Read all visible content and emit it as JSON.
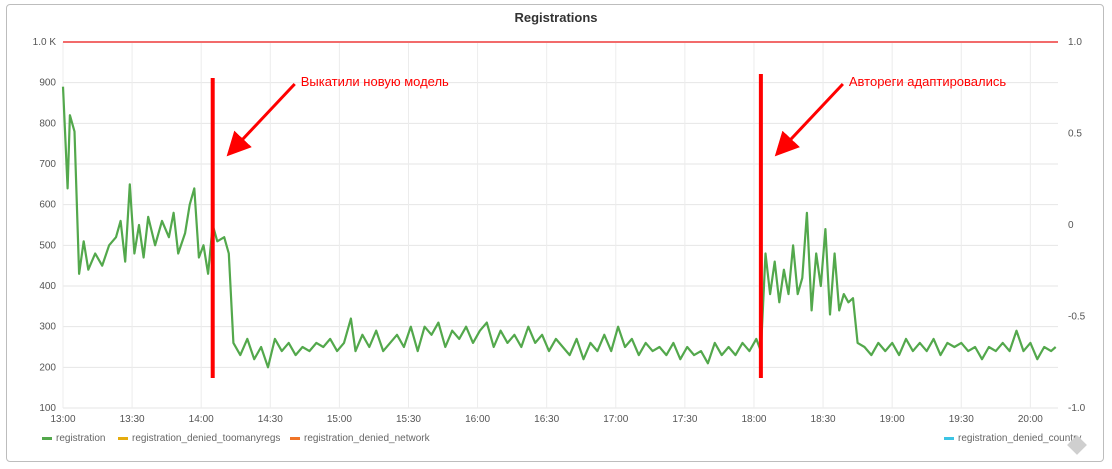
{
  "chart_data": {
    "type": "line",
    "title": "Registrations",
    "x": [
      "13:00",
      "13:30",
      "14:00",
      "14:30",
      "15:00",
      "15:30",
      "16:00",
      "16:30",
      "17:00",
      "17:30",
      "18:00",
      "18:30",
      "19:00",
      "19:30",
      "20:00"
    ],
    "y_left_ticks": [
      "100",
      "200",
      "300",
      "400",
      "500",
      "600",
      "700",
      "800",
      "900",
      "1.0 K"
    ],
    "y_right_ticks": [
      "1.0",
      "0.5",
      "0",
      "-0.5",
      "-1.0"
    ],
    "ylim_left": [
      100,
      1000
    ],
    "ylim_right": [
      -1.0,
      1.0
    ],
    "grid": true,
    "legend_position": "bottom",
    "series": [
      {
        "name": "registration",
        "color": "#53a84c",
        "points": [
          [
            "13:00",
            890
          ],
          [
            "13:02",
            640
          ],
          [
            "13:03",
            820
          ],
          [
            "13:05",
            780
          ],
          [
            "13:07",
            430
          ],
          [
            "13:09",
            510
          ],
          [
            "13:11",
            440
          ],
          [
            "13:14",
            480
          ],
          [
            "13:17",
            450
          ],
          [
            "13:20",
            500
          ],
          [
            "13:23",
            520
          ],
          [
            "13:25",
            560
          ],
          [
            "13:27",
            460
          ],
          [
            "13:29",
            650
          ],
          [
            "13:31",
            480
          ],
          [
            "13:33",
            550
          ],
          [
            "13:35",
            470
          ],
          [
            "13:37",
            570
          ],
          [
            "13:40",
            500
          ],
          [
            "13:43",
            560
          ],
          [
            "13:46",
            520
          ],
          [
            "13:48",
            580
          ],
          [
            "13:50",
            480
          ],
          [
            "13:53",
            530
          ],
          [
            "13:55",
            600
          ],
          [
            "13:57",
            640
          ],
          [
            "13:59",
            470
          ],
          [
            "14:01",
            500
          ],
          [
            "14:03",
            430
          ],
          [
            "14:05",
            550
          ],
          [
            "14:07",
            510
          ],
          [
            "14:10",
            520
          ],
          [
            "14:12",
            480
          ],
          [
            "14:14",
            260
          ],
          [
            "14:17",
            230
          ],
          [
            "14:20",
            270
          ],
          [
            "14:23",
            220
          ],
          [
            "14:26",
            250
          ],
          [
            "14:29",
            200
          ],
          [
            "14:32",
            270
          ],
          [
            "14:35",
            240
          ],
          [
            "14:38",
            260
          ],
          [
            "14:41",
            230
          ],
          [
            "14:44",
            250
          ],
          [
            "14:47",
            240
          ],
          [
            "14:50",
            260
          ],
          [
            "14:53",
            250
          ],
          [
            "14:56",
            270
          ],
          [
            "14:59",
            240
          ],
          [
            "15:02",
            260
          ],
          [
            "15:05",
            320
          ],
          [
            "15:07",
            240
          ],
          [
            "15:10",
            280
          ],
          [
            "15:13",
            250
          ],
          [
            "15:16",
            290
          ],
          [
            "15:19",
            240
          ],
          [
            "15:22",
            260
          ],
          [
            "15:25",
            280
          ],
          [
            "15:28",
            250
          ],
          [
            "15:31",
            300
          ],
          [
            "15:34",
            240
          ],
          [
            "15:37",
            300
          ],
          [
            "15:40",
            280
          ],
          [
            "15:43",
            310
          ],
          [
            "15:46",
            250
          ],
          [
            "15:49",
            290
          ],
          [
            "15:52",
            270
          ],
          [
            "15:55",
            300
          ],
          [
            "15:58",
            260
          ],
          [
            "16:01",
            290
          ],
          [
            "16:04",
            310
          ],
          [
            "16:07",
            250
          ],
          [
            "16:10",
            290
          ],
          [
            "16:13",
            260
          ],
          [
            "16:16",
            280
          ],
          [
            "16:19",
            250
          ],
          [
            "16:22",
            300
          ],
          [
            "16:25",
            260
          ],
          [
            "16:28",
            280
          ],
          [
            "16:31",
            240
          ],
          [
            "16:34",
            270
          ],
          [
            "16:37",
            250
          ],
          [
            "16:40",
            230
          ],
          [
            "16:43",
            270
          ],
          [
            "16:46",
            220
          ],
          [
            "16:49",
            260
          ],
          [
            "16:52",
            240
          ],
          [
            "16:55",
            280
          ],
          [
            "16:58",
            240
          ],
          [
            "17:01",
            300
          ],
          [
            "17:04",
            250
          ],
          [
            "17:07",
            270
          ],
          [
            "17:10",
            230
          ],
          [
            "17:13",
            260
          ],
          [
            "17:16",
            240
          ],
          [
            "17:19",
            250
          ],
          [
            "17:22",
            230
          ],
          [
            "17:25",
            260
          ],
          [
            "17:28",
            220
          ],
          [
            "17:31",
            250
          ],
          [
            "17:34",
            230
          ],
          [
            "17:37",
            240
          ],
          [
            "17:40",
            210
          ],
          [
            "17:43",
            260
          ],
          [
            "17:46",
            230
          ],
          [
            "17:49",
            250
          ],
          [
            "17:52",
            230
          ],
          [
            "17:55",
            260
          ],
          [
            "17:58",
            240
          ],
          [
            "18:01",
            270
          ],
          [
            "18:03",
            240
          ],
          [
            "18:05",
            480
          ],
          [
            "18:07",
            380
          ],
          [
            "18:09",
            460
          ],
          [
            "18:11",
            360
          ],
          [
            "18:13",
            440
          ],
          [
            "18:15",
            380
          ],
          [
            "18:17",
            500
          ],
          [
            "18:19",
            380
          ],
          [
            "18:21",
            420
          ],
          [
            "18:23",
            580
          ],
          [
            "18:25",
            340
          ],
          [
            "18:27",
            480
          ],
          [
            "18:29",
            400
          ],
          [
            "18:31",
            540
          ],
          [
            "18:33",
            330
          ],
          [
            "18:35",
            480
          ],
          [
            "18:37",
            340
          ],
          [
            "18:39",
            380
          ],
          [
            "18:41",
            360
          ],
          [
            "18:43",
            370
          ],
          [
            "18:45",
            260
          ],
          [
            "18:48",
            250
          ],
          [
            "18:51",
            230
          ],
          [
            "18:54",
            260
          ],
          [
            "18:57",
            240
          ],
          [
            "19:00",
            260
          ],
          [
            "19:03",
            230
          ],
          [
            "19:06",
            270
          ],
          [
            "19:09",
            240
          ],
          [
            "19:12",
            260
          ],
          [
            "19:15",
            240
          ],
          [
            "19:18",
            270
          ],
          [
            "19:21",
            230
          ],
          [
            "19:24",
            260
          ],
          [
            "19:27",
            250
          ],
          [
            "19:30",
            260
          ],
          [
            "19:33",
            240
          ],
          [
            "19:36",
            250
          ],
          [
            "19:39",
            220
          ],
          [
            "19:42",
            250
          ],
          [
            "19:45",
            240
          ],
          [
            "19:48",
            260
          ],
          [
            "19:51",
            240
          ],
          [
            "19:54",
            290
          ],
          [
            "19:57",
            240
          ],
          [
            "20:00",
            260
          ],
          [
            "20:03",
            220
          ],
          [
            "20:06",
            250
          ],
          [
            "20:09",
            240
          ],
          [
            "20:11",
            250
          ]
        ]
      },
      {
        "name": "registration_denied_toomanyregs",
        "color": "#e5ac0e"
      },
      {
        "name": "registration_denied_network",
        "color": "#f07427"
      },
      {
        "name": "registration_denied_country",
        "color": "#3cc4e4"
      }
    ],
    "threshold": {
      "value": 1000,
      "color": "#f26b6b"
    },
    "annotations": [
      {
        "text": "Выкатили новую модель",
        "at": "14:05",
        "color": "#ff0000"
      },
      {
        "text": "Автореги адаптировались",
        "at": "18:03",
        "color": "#ff0000"
      }
    ]
  }
}
